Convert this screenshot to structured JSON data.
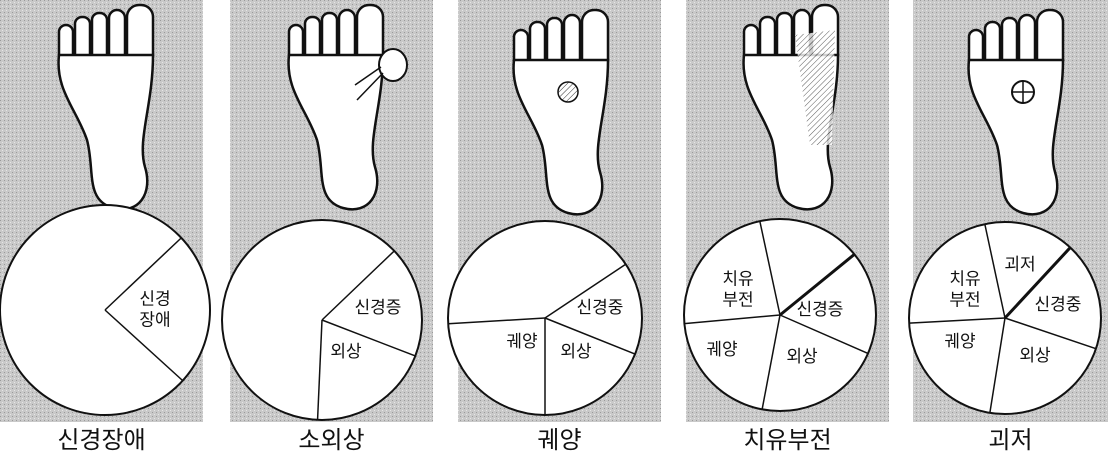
{
  "panels": [
    {
      "caption": "신경장애",
      "pie_labels": [
        {
          "lines": [
            "신경",
            "장애"
          ]
        }
      ]
    },
    {
      "caption": "소외상",
      "pie_labels": [
        {
          "lines": [
            "신경증"
          ]
        },
        {
          "lines": [
            "외상"
          ]
        }
      ]
    },
    {
      "caption": "궤양",
      "pie_labels": [
        {
          "lines": [
            "신경중"
          ]
        },
        {
          "lines": [
            "외상"
          ]
        },
        {
          "lines": [
            "궤양"
          ]
        }
      ]
    },
    {
      "caption": "치유부전",
      "pie_labels": [
        {
          "lines": [
            "치유",
            "부전"
          ]
        },
        {
          "lines": [
            "신경증"
          ]
        },
        {
          "lines": [
            "궤양"
          ]
        },
        {
          "lines": [
            "외상"
          ]
        }
      ]
    },
    {
      "caption": "괴저",
      "pie_labels": [
        {
          "lines": [
            "괴저"
          ]
        },
        {
          "lines": [
            "치유",
            "부전"
          ]
        },
        {
          "lines": [
            "신경중"
          ]
        },
        {
          "lines": [
            "궤양"
          ]
        },
        {
          "lines": [
            "외상"
          ]
        }
      ]
    }
  ]
}
